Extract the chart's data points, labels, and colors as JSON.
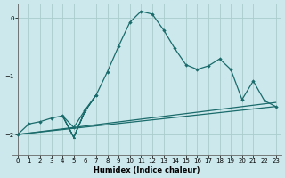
{
  "xlabel": "Humidex (Indice chaleur)",
  "background_color": "#cce8ec",
  "grid_color": "#aacccc",
  "line_color": "#1a6b6b",
  "xlim": [
    -0.5,
    23.5
  ],
  "ylim": [
    -2.35,
    0.25
  ],
  "yticks": [
    0,
    -1,
    -2
  ],
  "xticks": [
    0,
    1,
    2,
    3,
    4,
    5,
    6,
    7,
    8,
    9,
    10,
    11,
    12,
    13,
    14,
    15,
    16,
    17,
    18,
    19,
    20,
    21,
    22,
    23
  ],
  "line1_x": [
    0,
    1,
    2,
    3,
    4,
    5,
    6,
    7,
    8,
    9,
    10,
    11,
    12,
    13,
    14,
    15,
    16,
    17,
    18,
    19,
    20,
    21,
    22,
    23
  ],
  "line1_y": [
    -2.0,
    -1.82,
    -1.78,
    -1.72,
    -1.68,
    -1.88,
    -1.58,
    -1.32,
    -0.92,
    -0.48,
    -0.07,
    0.12,
    0.07,
    -0.2,
    -0.52,
    -0.8,
    -0.88,
    -0.82,
    -0.7,
    -0.88,
    -1.4,
    -1.08,
    -1.42,
    -1.52
  ],
  "line2_x": [
    0,
    23
  ],
  "line2_y": [
    -2.0,
    -1.45
  ],
  "line3_x": [
    0,
    23
  ],
  "line3_y": [
    -2.0,
    -1.52
  ],
  "tri_x": [
    4,
    5,
    6,
    7,
    6,
    5,
    4,
    4
  ],
  "tri_y": [
    -1.68,
    -2.05,
    -1.6,
    -1.32,
    -1.6,
    -2.05,
    -1.68,
    -1.68
  ]
}
